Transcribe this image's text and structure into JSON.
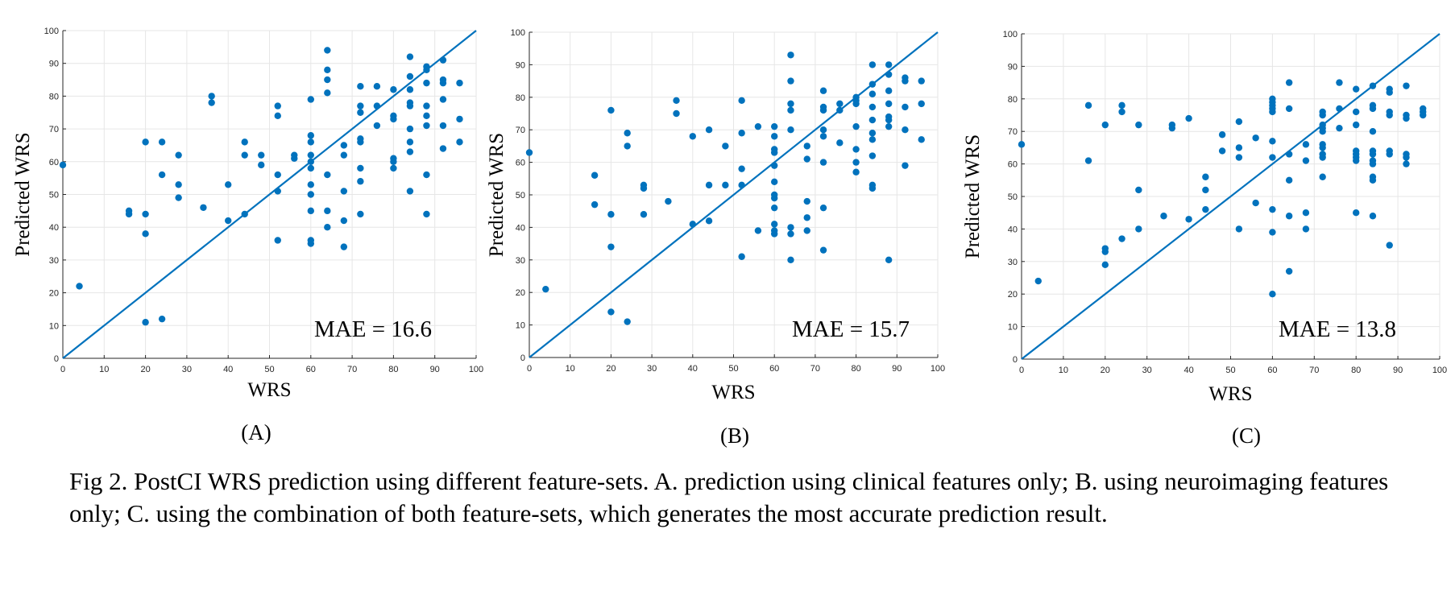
{
  "caption": "Fig 2. PostCI WRS prediction using different feature-sets. A. prediction using clinical features only; B. using neuroimaging features only; C. using the combination of both feature-sets, which generates the most accurate prediction result.",
  "colors": {
    "marker": "#0072BD",
    "grid": "#e6e6e6",
    "axis": "#262626"
  },
  "chart_data": [
    {
      "type": "scatter",
      "panel_label": "(A)",
      "xlabel": "WRS",
      "ylabel": "Predicted WRS",
      "annotation": "MAE = 16.6",
      "xlim": [
        0,
        100
      ],
      "ylim": [
        0,
        100
      ],
      "xticks": [
        0,
        10,
        20,
        30,
        40,
        50,
        60,
        70,
        80,
        90,
        100
      ],
      "yticks": [
        0,
        10,
        20,
        30,
        40,
        50,
        60,
        70,
        80,
        90,
        100
      ],
      "grid": true,
      "reference_line": [
        [
          0,
          0
        ],
        [
          100,
          100
        ]
      ],
      "points": [
        [
          0,
          59
        ],
        [
          4,
          22
        ],
        [
          16,
          45
        ],
        [
          16,
          44
        ],
        [
          20,
          66
        ],
        [
          20,
          44
        ],
        [
          20,
          38
        ],
        [
          20,
          11
        ],
        [
          24,
          66
        ],
        [
          24,
          56
        ],
        [
          24,
          12
        ],
        [
          28,
          62
        ],
        [
          28,
          53
        ],
        [
          28,
          49
        ],
        [
          34,
          46
        ],
        [
          36,
          80
        ],
        [
          36,
          78
        ],
        [
          40,
          53
        ],
        [
          40,
          42
        ],
        [
          44,
          66
        ],
        [
          44,
          62
        ],
        [
          44,
          44
        ],
        [
          48,
          62
        ],
        [
          48,
          59
        ],
        [
          52,
          77
        ],
        [
          52,
          74
        ],
        [
          52,
          56
        ],
        [
          52,
          51
        ],
        [
          52,
          36
        ],
        [
          56,
          62
        ],
        [
          56,
          61
        ],
        [
          60,
          79
        ],
        [
          60,
          68
        ],
        [
          60,
          66
        ],
        [
          60,
          62
        ],
        [
          60,
          60
        ],
        [
          60,
          58
        ],
        [
          60,
          53
        ],
        [
          60,
          50
        ],
        [
          60,
          45
        ],
        [
          60,
          36
        ],
        [
          60,
          35
        ],
        [
          64,
          94
        ],
        [
          64,
          88
        ],
        [
          64,
          85
        ],
        [
          64,
          81
        ],
        [
          64,
          56
        ],
        [
          64,
          45
        ],
        [
          64,
          40
        ],
        [
          68,
          65
        ],
        [
          68,
          62
        ],
        [
          68,
          51
        ],
        [
          68,
          42
        ],
        [
          68,
          34
        ],
        [
          72,
          83
        ],
        [
          72,
          77
        ],
        [
          72,
          75
        ],
        [
          72,
          67
        ],
        [
          72,
          66
        ],
        [
          72,
          58
        ],
        [
          72,
          54
        ],
        [
          72,
          44
        ],
        [
          76,
          83
        ],
        [
          76,
          77
        ],
        [
          76,
          71
        ],
        [
          80,
          82
        ],
        [
          80,
          74
        ],
        [
          80,
          73
        ],
        [
          80,
          61
        ],
        [
          80,
          60
        ],
        [
          80,
          58
        ],
        [
          84,
          92
        ],
        [
          84,
          86
        ],
        [
          84,
          82
        ],
        [
          84,
          78
        ],
        [
          84,
          77
        ],
        [
          84,
          70
        ],
        [
          84,
          66
        ],
        [
          84,
          63
        ],
        [
          84,
          51
        ],
        [
          88,
          89
        ],
        [
          88,
          88
        ],
        [
          88,
          84
        ],
        [
          88,
          77
        ],
        [
          88,
          74
        ],
        [
          88,
          71
        ],
        [
          88,
          56
        ],
        [
          88,
          44
        ],
        [
          92,
          91
        ],
        [
          92,
          85
        ],
        [
          92,
          84
        ],
        [
          92,
          79
        ],
        [
          92,
          71
        ],
        [
          92,
          64
        ],
        [
          96,
          84
        ],
        [
          96,
          73
        ],
        [
          96,
          66
        ]
      ]
    },
    {
      "type": "scatter",
      "panel_label": "(B)",
      "xlabel": "WRS",
      "ylabel": "Predicted WRS",
      "annotation": "MAE = 15.7",
      "xlim": [
        0,
        100
      ],
      "ylim": [
        0,
        100
      ],
      "xticks": [
        0,
        10,
        20,
        30,
        40,
        50,
        60,
        70,
        80,
        90,
        100
      ],
      "yticks": [
        0,
        10,
        20,
        30,
        40,
        50,
        60,
        70,
        80,
        90,
        100
      ],
      "grid": true,
      "reference_line": [
        [
          0,
          0
        ],
        [
          100,
          100
        ]
      ],
      "points": [
        [
          0,
          63
        ],
        [
          4,
          21
        ],
        [
          16,
          56
        ],
        [
          16,
          47
        ],
        [
          20,
          76
        ],
        [
          20,
          44
        ],
        [
          20,
          34
        ],
        [
          20,
          14
        ],
        [
          24,
          69
        ],
        [
          24,
          65
        ],
        [
          24,
          11
        ],
        [
          28,
          53
        ],
        [
          28,
          52
        ],
        [
          28,
          44
        ],
        [
          34,
          48
        ],
        [
          36,
          79
        ],
        [
          36,
          75
        ],
        [
          40,
          68
        ],
        [
          40,
          41
        ],
        [
          44,
          70
        ],
        [
          44,
          53
        ],
        [
          44,
          42
        ],
        [
          48,
          65
        ],
        [
          48,
          53
        ],
        [
          52,
          79
        ],
        [
          52,
          69
        ],
        [
          52,
          58
        ],
        [
          52,
          53
        ],
        [
          52,
          31
        ],
        [
          56,
          71
        ],
        [
          56,
          39
        ],
        [
          60,
          71
        ],
        [
          60,
          68
        ],
        [
          60,
          64
        ],
        [
          60,
          63
        ],
        [
          60,
          59
        ],
        [
          60,
          54
        ],
        [
          60,
          50
        ],
        [
          60,
          49
        ],
        [
          60,
          46
        ],
        [
          60,
          41
        ],
        [
          60,
          39
        ],
        [
          60,
          38
        ],
        [
          64,
          93
        ],
        [
          64,
          85
        ],
        [
          64,
          78
        ],
        [
          64,
          76
        ],
        [
          64,
          70
        ],
        [
          64,
          40
        ],
        [
          64,
          38
        ],
        [
          64,
          30
        ],
        [
          68,
          65
        ],
        [
          68,
          61
        ],
        [
          68,
          48
        ],
        [
          68,
          43
        ],
        [
          68,
          39
        ],
        [
          72,
          82
        ],
        [
          72,
          77
        ],
        [
          72,
          76
        ],
        [
          72,
          70
        ],
        [
          72,
          68
        ],
        [
          72,
          60
        ],
        [
          72,
          46
        ],
        [
          72,
          33
        ],
        [
          76,
          78
        ],
        [
          76,
          76
        ],
        [
          76,
          66
        ],
        [
          80,
          80
        ],
        [
          80,
          79
        ],
        [
          80,
          78
        ],
        [
          80,
          71
        ],
        [
          80,
          64
        ],
        [
          80,
          60
        ],
        [
          80,
          57
        ],
        [
          84,
          90
        ],
        [
          84,
          84
        ],
        [
          84,
          81
        ],
        [
          84,
          77
        ],
        [
          84,
          73
        ],
        [
          84,
          69
        ],
        [
          84,
          67
        ],
        [
          84,
          62
        ],
        [
          84,
          53
        ],
        [
          84,
          52
        ],
        [
          88,
          90
        ],
        [
          88,
          87
        ],
        [
          88,
          82
        ],
        [
          88,
          78
        ],
        [
          88,
          74
        ],
        [
          88,
          73
        ],
        [
          88,
          71
        ],
        [
          88,
          30
        ],
        [
          92,
          86
        ],
        [
          92,
          85
        ],
        [
          92,
          77
        ],
        [
          92,
          70
        ],
        [
          92,
          59
        ],
        [
          96,
          85
        ],
        [
          96,
          78
        ],
        [
          96,
          67
        ]
      ]
    },
    {
      "type": "scatter",
      "panel_label": "(C)",
      "xlabel": "WRS",
      "ylabel": "Predicted WRS",
      "annotation": "MAE = 13.8",
      "xlim": [
        0,
        100
      ],
      "ylim": [
        0,
        100
      ],
      "xticks": [
        0,
        10,
        20,
        30,
        40,
        50,
        60,
        70,
        80,
        90,
        100
      ],
      "yticks": [
        0,
        10,
        20,
        30,
        40,
        50,
        60,
        70,
        80,
        90,
        100
      ],
      "grid": true,
      "reference_line": [
        [
          0,
          0
        ],
        [
          100,
          100
        ]
      ],
      "points": [
        [
          0,
          66
        ],
        [
          4,
          24
        ],
        [
          16,
          78
        ],
        [
          16,
          61
        ],
        [
          20,
          72
        ],
        [
          20,
          34
        ],
        [
          20,
          33
        ],
        [
          20,
          29
        ],
        [
          24,
          78
        ],
        [
          24,
          76
        ],
        [
          24,
          37
        ],
        [
          28,
          72
        ],
        [
          28,
          52
        ],
        [
          28,
          40
        ],
        [
          34,
          44
        ],
        [
          36,
          72
        ],
        [
          36,
          71
        ],
        [
          40,
          74
        ],
        [
          40,
          43
        ],
        [
          44,
          56
        ],
        [
          44,
          52
        ],
        [
          44,
          46
        ],
        [
          48,
          69
        ],
        [
          48,
          64
        ],
        [
          52,
          73
        ],
        [
          52,
          65
        ],
        [
          52,
          62
        ],
        [
          52,
          40
        ],
        [
          56,
          68
        ],
        [
          56,
          48
        ],
        [
          60,
          80
        ],
        [
          60,
          79
        ],
        [
          60,
          78
        ],
        [
          60,
          77
        ],
        [
          60,
          76
        ],
        [
          60,
          67
        ],
        [
          60,
          62
        ],
        [
          60,
          46
        ],
        [
          60,
          39
        ],
        [
          60,
          20
        ],
        [
          64,
          85
        ],
        [
          64,
          77
        ],
        [
          64,
          63
        ],
        [
          64,
          55
        ],
        [
          64,
          44
        ],
        [
          64,
          27
        ],
        [
          68,
          66
        ],
        [
          68,
          61
        ],
        [
          68,
          45
        ],
        [
          68,
          40
        ],
        [
          72,
          76
        ],
        [
          72,
          75
        ],
        [
          72,
          72
        ],
        [
          72,
          71
        ],
        [
          72,
          70
        ],
        [
          72,
          66
        ],
        [
          72,
          65
        ],
        [
          72,
          63
        ],
        [
          72,
          62
        ],
        [
          72,
          56
        ],
        [
          76,
          85
        ],
        [
          76,
          77
        ],
        [
          76,
          71
        ],
        [
          80,
          83
        ],
        [
          80,
          76
        ],
        [
          80,
          72
        ],
        [
          80,
          64
        ],
        [
          80,
          63
        ],
        [
          80,
          62
        ],
        [
          80,
          61
        ],
        [
          80,
          45
        ],
        [
          84,
          84
        ],
        [
          84,
          78
        ],
        [
          84,
          77
        ],
        [
          84,
          70
        ],
        [
          84,
          64
        ],
        [
          84,
          63
        ],
        [
          84,
          61
        ],
        [
          84,
          60
        ],
        [
          84,
          56
        ],
        [
          84,
          55
        ],
        [
          84,
          44
        ],
        [
          88,
          83
        ],
        [
          88,
          82
        ],
        [
          88,
          76
        ],
        [
          88,
          75
        ],
        [
          88,
          64
        ],
        [
          88,
          63
        ],
        [
          88,
          35
        ],
        [
          92,
          84
        ],
        [
          92,
          75
        ],
        [
          92,
          74
        ],
        [
          92,
          63
        ],
        [
          92,
          62
        ],
        [
          92,
          60
        ],
        [
          96,
          77
        ],
        [
          96,
          76
        ],
        [
          96,
          75
        ]
      ]
    }
  ]
}
